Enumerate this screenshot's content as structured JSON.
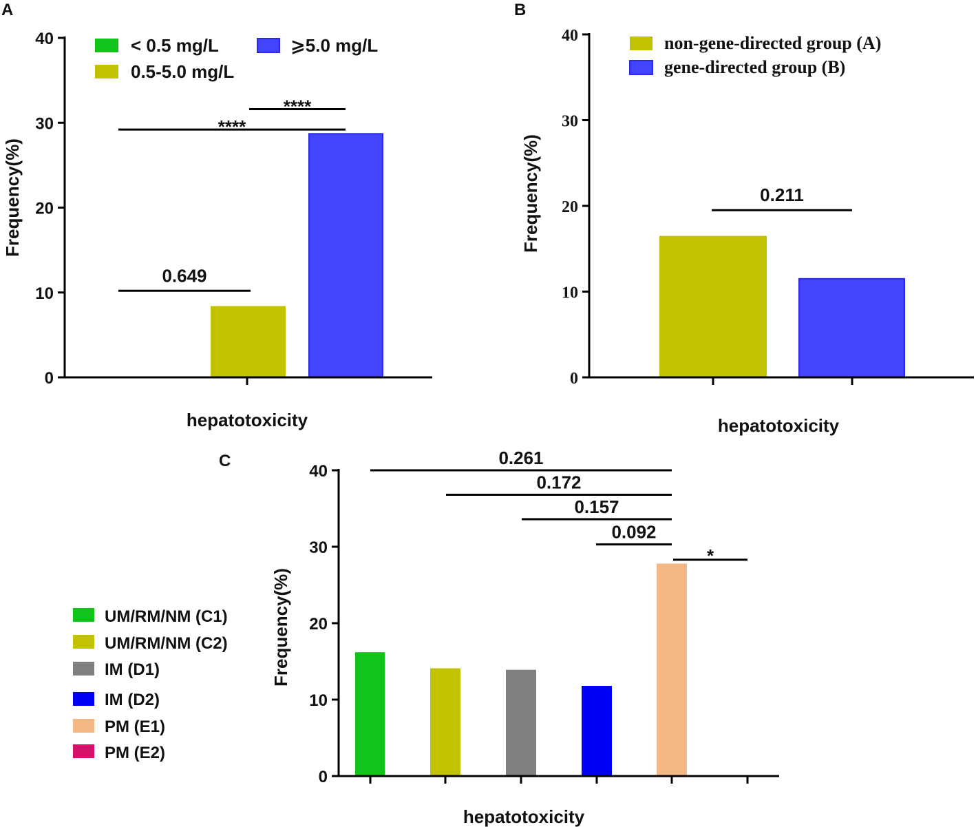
{
  "colors": {
    "green": "#11c41a",
    "olive": "#c2c200",
    "blue_light": "#4444ff",
    "blue_light_edge": "#2a2ae6",
    "gray": "#808080",
    "blue": "#0000f4",
    "peach": "#f2b883",
    "crimson": "#d6116b"
  },
  "chart_data": [
    {
      "panel": "A",
      "type": "bar",
      "ylabel": "Frequency(%)",
      "xlabel": "hepatotoxicity",
      "ylim": [
        0,
        40
      ],
      "yticks": [
        "0",
        "10",
        "20",
        "30",
        "40"
      ],
      "series": [
        {
          "name": "< 0.5 mg/L",
          "value": 0,
          "color": "#11c41a"
        },
        {
          "name": "0.5-5.0 mg/L",
          "value": 8.4,
          "color": "#c2c200"
        },
        {
          "name": "⩾5.0 mg/L",
          "value": 28.7,
          "color": "#4444ff"
        }
      ],
      "comparisons": [
        {
          "from": 0,
          "to": 1,
          "y": 10.2,
          "label": "0.649"
        },
        {
          "from": 0,
          "to": 2,
          "y": 29.2,
          "label": "****"
        },
        {
          "from": 1,
          "to": 2,
          "y": 31.6,
          "label": "****"
        }
      ]
    },
    {
      "panel": "B",
      "type": "bar",
      "ylabel": "Frequency(%)",
      "xlabel": "hepatotoxicity",
      "ylim": [
        0,
        40
      ],
      "yticks": [
        "0",
        "10",
        "20",
        "30",
        "40"
      ],
      "series": [
        {
          "name": "non-gene-directed group (A)",
          "value": 16.5,
          "color": "#c2c200"
        },
        {
          "name": "gene-directed group (B)",
          "value": 11.5,
          "color": "#4444ff"
        }
      ],
      "comparisons": [
        {
          "from": 0,
          "to": 1,
          "y": 19.5,
          "label": "0.211"
        }
      ]
    },
    {
      "panel": "C",
      "type": "bar",
      "ylabel": "Frequency(%)",
      "xlabel": "hepatotoxicity",
      "ylim": [
        0,
        40
      ],
      "yticks": [
        "0",
        "10",
        "20",
        "30",
        "40"
      ],
      "series": [
        {
          "name": "UM/RM/NM (C1)",
          "value": 16.2,
          "color": "#11c41a"
        },
        {
          "name": "UM/RM/NM (C2)",
          "value": 14.1,
          "color": "#c2c200"
        },
        {
          "name": "IM (D1)",
          "value": 13.9,
          "color": "#808080"
        },
        {
          "name": "IM (D2)",
          "value": 11.8,
          "color": "#0000f4"
        },
        {
          "name": "PM (E1)",
          "value": 27.8,
          "color": "#f2b883"
        },
        {
          "name": "PM (E2)",
          "value": 0,
          "color": "#d6116b"
        }
      ],
      "comparisons": [
        {
          "from": 0,
          "to": 4,
          "y": 40.0,
          "label": "0.261"
        },
        {
          "from": 1,
          "to": 4,
          "y": 36.8,
          "label": "0.172"
        },
        {
          "from": 2,
          "to": 4,
          "y": 33.6,
          "label": "0.157"
        },
        {
          "from": 3,
          "to": 4,
          "y": 30.3,
          "label": "0.092"
        },
        {
          "from": 4,
          "to": 5,
          "y": 28.3,
          "label": "*"
        }
      ]
    }
  ]
}
